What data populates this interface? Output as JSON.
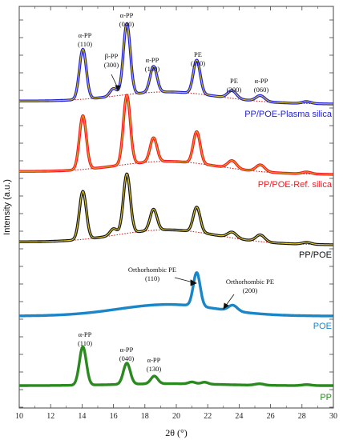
{
  "chart_data": {
    "type": "line",
    "xlabel": "2θ (°)",
    "ylabel": "Intensity (a.u.)",
    "xlim": [
      10,
      30
    ],
    "x_ticks": [
      "10",
      "12",
      "14",
      "16",
      "18",
      "20",
      "22",
      "24",
      "26",
      "28",
      "30"
    ],
    "grid": false,
    "series": [
      {
        "name": "PP/POE-Plasma silica",
        "color": "#1f1fd6",
        "fit_color": "#d4c02a",
        "baseline_start": 0.03,
        "baseline_end": 0.0,
        "hump": 0.11,
        "peaks": [
          [
            14.05,
            0.52
          ],
          [
            16.0,
            0.08
          ],
          [
            16.85,
            0.74
          ],
          [
            18.55,
            0.27
          ],
          [
            21.3,
            0.35
          ],
          [
            23.55,
            0.08
          ],
          [
            25.35,
            0.06
          ],
          [
            28.3,
            0.02
          ]
        ]
      },
      {
        "name": "PP/POE-Ref. silica",
        "color": "#ee1c24",
        "fit_color": "#f0a020",
        "baseline_start": 0.03,
        "baseline_end": 0.0,
        "hump": 0.12,
        "peaks": [
          [
            14.05,
            0.56
          ],
          [
            16.85,
            0.72
          ],
          [
            18.55,
            0.25
          ],
          [
            21.3,
            0.33
          ],
          [
            23.55,
            0.08
          ],
          [
            25.35,
            0.07
          ],
          [
            28.3,
            0.02
          ]
        ]
      },
      {
        "name": "PP/POE",
        "color": "#111111",
        "fit_color": "#e8d02a",
        "baseline_start": 0.03,
        "baseline_end": 0.0,
        "hump": 0.14,
        "peaks": [
          [
            14.05,
            0.5
          ],
          [
            16.0,
            0.07
          ],
          [
            16.85,
            0.62
          ],
          [
            18.55,
            0.22
          ],
          [
            21.3,
            0.26
          ],
          [
            23.55,
            0.06
          ],
          [
            25.35,
            0.07
          ],
          [
            28.3,
            0.02
          ]
        ]
      },
      {
        "name": "POE",
        "color": "#1a86c8",
        "baseline_start": 0.0,
        "baseline_end": 0.0,
        "hump": 0.12,
        "peaks": [
          [
            21.3,
            0.35
          ],
          [
            23.6,
            0.06
          ]
        ]
      },
      {
        "name": "PP",
        "color": "#2a8a1f",
        "baseline_start": 0.0,
        "baseline_end": 0.0,
        "hump": 0.02,
        "peaks": [
          [
            14.05,
            0.4
          ],
          [
            16.85,
            0.22
          ],
          [
            18.6,
            0.08
          ],
          [
            21.0,
            0.02
          ],
          [
            21.8,
            0.02
          ],
          [
            25.3,
            0.015
          ],
          [
            28.3,
            0.01
          ]
        ]
      }
    ],
    "annotations": [
      {
        "id": "a1",
        "lines": [
          "α-PP",
          "(110)"
        ]
      },
      {
        "id": "a2",
        "lines": [
          "α-PP",
          "(040)"
        ]
      },
      {
        "id": "a3",
        "lines": [
          "β-PP",
          "(300)"
        ]
      },
      {
        "id": "a4",
        "lines": [
          "α-PP",
          "(130)"
        ]
      },
      {
        "id": "a5",
        "lines": [
          "PE",
          "(110)"
        ]
      },
      {
        "id": "a6",
        "lines": [
          "PE",
          "(200)"
        ]
      },
      {
        "id": "a7",
        "lines": [
          "α-PP",
          "(060)"
        ]
      },
      {
        "id": "a8",
        "lines": [
          "Orthorhombic PE",
          "(110)"
        ]
      },
      {
        "id": "a9",
        "lines": [
          "Orthorhombic PE",
          "(200)"
        ]
      },
      {
        "id": "a10",
        "lines": [
          "α-PP",
          "(110)"
        ]
      },
      {
        "id": "a11",
        "lines": [
          "α-PP",
          "(040)"
        ]
      },
      {
        "id": "a12",
        "lines": [
          "α-PP",
          "(130)"
        ]
      }
    ]
  }
}
